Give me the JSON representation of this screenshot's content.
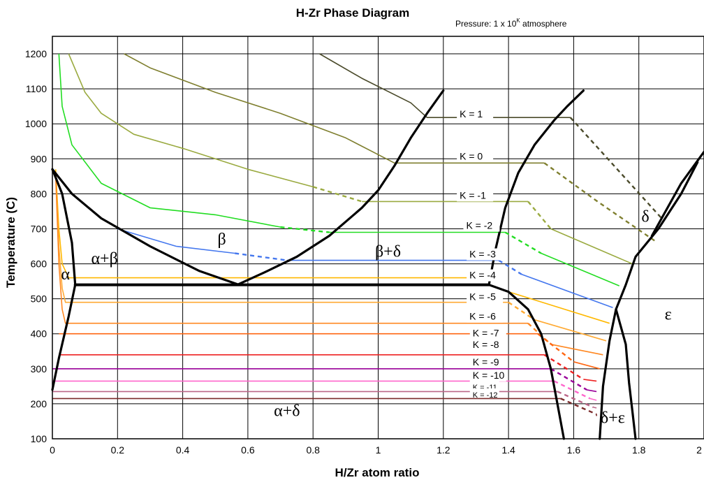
{
  "chart_data": {
    "type": "line",
    "title": "H-Zr Phase Diagram",
    "subtitle": {
      "prefix": "Pressure: 1 x 10",
      "superscript": "K",
      "suffix": " atmosphere"
    },
    "xlabel": "H/Zr atom ratio",
    "ylabel": "Temperature (C)",
    "xlim": [
      0,
      2
    ],
    "ylim": [
      100,
      1250
    ],
    "grid": true,
    "x_ticks": [
      {
        "value": 0,
        "label": "0"
      },
      {
        "value": 0.2,
        "label": "0.2"
      },
      {
        "value": 0.4,
        "label": "0.4"
      },
      {
        "value": 0.6,
        "label": "0.6"
      },
      {
        "value": 0.8,
        "label": "0.8"
      },
      {
        "value": 1,
        "label": "1"
      },
      {
        "value": 1.2,
        "label": "1.2"
      },
      {
        "value": 1.4,
        "label": "1.4"
      },
      {
        "value": 1.6,
        "label": "1.6"
      },
      {
        "value": 1.8,
        "label": "1.8"
      },
      {
        "value": 2,
        "label": "2"
      }
    ],
    "y_ticks": [
      {
        "value": 100,
        "label": "100"
      },
      {
        "value": 200,
        "label": "200"
      },
      {
        "value": 300,
        "label": "300"
      },
      {
        "value": 400,
        "label": "400"
      },
      {
        "value": 500,
        "label": "500"
      },
      {
        "value": 600,
        "label": "600"
      },
      {
        "value": 700,
        "label": "700"
      },
      {
        "value": 800,
        "label": "800"
      },
      {
        "value": 900,
        "label": "900"
      },
      {
        "value": 1000,
        "label": "1000"
      },
      {
        "value": 1100,
        "label": "1100"
      },
      {
        "value": 1200,
        "label": "1200"
      }
    ],
    "phase_boundaries": [
      {
        "name": "alpha-upper",
        "color": "#000000",
        "width": 3.2,
        "points": [
          [
            0,
            870
          ],
          [
            0.03,
            800
          ],
          [
            0.06,
            660
          ],
          [
            0.07,
            540
          ]
        ]
      },
      {
        "name": "alpha-lower",
        "color": "#000000",
        "width": 3.2,
        "points": [
          [
            0.07,
            540
          ],
          [
            0.05,
            450
          ],
          [
            0.02,
            330
          ],
          [
            0,
            240
          ]
        ]
      },
      {
        "name": "beta-lower-left",
        "color": "#000000",
        "width": 3.2,
        "points": [
          [
            0,
            870
          ],
          [
            0.06,
            800
          ],
          [
            0.15,
            730
          ],
          [
            0.3,
            650
          ],
          [
            0.45,
            580
          ],
          [
            0.57,
            541
          ]
        ]
      },
      {
        "name": "beta-right",
        "color": "#000000",
        "width": 3.2,
        "points": [
          [
            0.57,
            541
          ],
          [
            0.65,
            575
          ],
          [
            0.75,
            620
          ],
          [
            0.85,
            680
          ],
          [
            0.95,
            760
          ],
          [
            1.0,
            810
          ],
          [
            1.05,
            880
          ],
          [
            1.1,
            960
          ],
          [
            1.15,
            1030
          ],
          [
            1.2,
            1095
          ]
        ]
      },
      {
        "name": "eutectoid",
        "color": "#000000",
        "width": 4,
        "points": [
          [
            0.07,
            540
          ],
          [
            1.34,
            540
          ]
        ]
      },
      {
        "name": "delta-left",
        "color": "#000000",
        "width": 3.2,
        "points": [
          [
            1.34,
            540
          ],
          [
            1.36,
            640
          ],
          [
            1.39,
            760
          ],
          [
            1.43,
            860
          ],
          [
            1.48,
            940
          ],
          [
            1.54,
            1010
          ],
          [
            1.58,
            1050
          ],
          [
            1.63,
            1095
          ]
        ]
      },
      {
        "name": "delta-right",
        "color": "#000000",
        "width": 3.2,
        "points": [
          [
            1.98,
            890
          ],
          [
            1.93,
            800
          ],
          [
            1.86,
            700
          ],
          [
            1.79,
            620
          ],
          [
            1.76,
            540
          ],
          [
            1.73,
            470
          ],
          [
            1.71,
            380
          ],
          [
            1.69,
            250
          ],
          [
            1.68,
            100
          ]
        ]
      },
      {
        "name": "delta-eps-right",
        "color": "#000000",
        "width": 3.2,
        "points": [
          [
            2.0,
            920
          ],
          [
            1.93,
            830
          ],
          [
            1.84,
            680
          ]
        ]
      },
      {
        "name": "delta-low-left",
        "color": "#000000",
        "width": 3.2,
        "points": [
          [
            1.34,
            540
          ],
          [
            1.4,
            520
          ],
          [
            1.46,
            470
          ],
          [
            1.5,
            400
          ],
          [
            1.53,
            300
          ],
          [
            1.55,
            200
          ],
          [
            1.57,
            100
          ]
        ]
      },
      {
        "name": "eps-lower-left",
        "color": "#000000",
        "width": 3.2,
        "points": [
          [
            1.73,
            470
          ],
          [
            1.76,
            370
          ],
          [
            1.77,
            260
          ],
          [
            1.78,
            180
          ],
          [
            1.79,
            100
          ]
        ]
      }
    ],
    "isobars": [
      {
        "label": "K = 1",
        "color": "#4a4a2a",
        "label_x": 1.25,
        "label_y": 1018,
        "points": [
          [
            0.82,
            1200
          ],
          [
            0.95,
            1130
          ],
          [
            1.1,
            1060
          ],
          [
            1.15,
            1018
          ],
          [
            1.59,
            1018
          ]
        ],
        "dashed": [
          [
            1.59,
            1018
          ],
          [
            1.87,
            730
          ]
        ]
      },
      {
        "label": "K = 0",
        "color": "#7f7f2f",
        "label_x": 1.25,
        "label_y": 898,
        "points": [
          [
            0.22,
            1200
          ],
          [
            0.3,
            1160
          ],
          [
            0.5,
            1090
          ],
          [
            0.7,
            1030
          ],
          [
            0.9,
            960
          ],
          [
            1.05,
            888
          ],
          [
            1.51,
            888
          ]
        ],
        "dashed": [
          [
            1.51,
            888
          ],
          [
            1.67,
            780
          ],
          [
            1.85,
            665
          ]
        ]
      },
      {
        "label": "K = -1",
        "color": "#9aaa40",
        "label_x": 1.25,
        "label_y": 786,
        "points": [
          [
            0.05,
            1200
          ],
          [
            0.1,
            1090
          ],
          [
            0.15,
            1030
          ],
          [
            0.25,
            970
          ],
          [
            0.4,
            930
          ],
          [
            0.6,
            870
          ],
          [
            0.8,
            820
          ]
        ],
        "dashed": [
          [
            0.8,
            820
          ],
          [
            0.95,
            778
          ]
        ],
        "tail": [
          [
            0.95,
            778
          ],
          [
            1.46,
            778
          ]
        ],
        "tail_dashed": [
          [
            1.46,
            778
          ],
          [
            1.53,
            700
          ]
        ],
        "tail2": [
          [
            1.53,
            700
          ],
          [
            1.78,
            600
          ]
        ]
      },
      {
        "label": "K = -2",
        "color": "#22dd22",
        "label_x": 1.27,
        "label_y": 700,
        "points": [
          [
            0.02,
            1200
          ],
          [
            0.03,
            1050
          ],
          [
            0.06,
            940
          ],
          [
            0.15,
            830
          ],
          [
            0.3,
            760
          ],
          [
            0.5,
            740
          ],
          [
            0.7,
            705
          ]
        ],
        "dashed": [
          [
            0.7,
            705
          ],
          [
            0.85,
            690
          ]
        ],
        "tail": [
          [
            0.85,
            690
          ],
          [
            1.39,
            690
          ]
        ],
        "tail_dashed": [
          [
            1.39,
            690
          ],
          [
            1.5,
            630
          ]
        ],
        "tail2": [
          [
            1.5,
            630
          ],
          [
            1.74,
            537
          ]
        ]
      },
      {
        "label": "K = -3",
        "color": "#4477ee",
        "label_x": 1.28,
        "label_y": 618,
        "points": [
          [
            0.2,
            700
          ],
          [
            0.38,
            650
          ],
          [
            0.56,
            630
          ]
        ],
        "dashed": [
          [
            0.56,
            630
          ],
          [
            0.72,
            610
          ]
        ],
        "tail": [
          [
            0.72,
            610
          ],
          [
            1.37,
            610
          ]
        ],
        "tail_dashed": [
          [
            1.37,
            610
          ],
          [
            1.44,
            570
          ]
        ],
        "tail2": [
          [
            1.44,
            570
          ],
          [
            1.72,
            475
          ]
        ]
      },
      {
        "label": "K = -4",
        "color": "#ffb800",
        "label_x": 1.28,
        "label_y": 558,
        "points": [
          [
            0.01,
            870
          ],
          [
            0.02,
            700
          ],
          [
            0.03,
            600
          ],
          [
            0.05,
            560
          ],
          [
            1.34,
            560
          ]
        ],
        "tail": [
          [
            1.4,
            520
          ],
          [
            1.71,
            430
          ]
        ]
      },
      {
        "label": "K = -5",
        "color": "#ffaa33",
        "label_x": 1.28,
        "label_y": 496,
        "points": [
          [
            0.01,
            860
          ],
          [
            0.02,
            650
          ],
          [
            0.03,
            530
          ],
          [
            0.04,
            490
          ],
          [
            1.4,
            490
          ]
        ],
        "tail_dashed": [
          [
            1.4,
            490
          ],
          [
            1.48,
            440
          ]
        ],
        "tail2": [
          [
            1.48,
            440
          ],
          [
            1.7,
            380
          ]
        ]
      },
      {
        "label": "K = -6",
        "color": "#ff8822",
        "label_x": 1.28,
        "label_y": 440,
        "points": [
          [
            0.01,
            850
          ],
          [
            0.02,
            600
          ],
          [
            0.03,
            470
          ],
          [
            0.04,
            430
          ],
          [
            1.46,
            430
          ]
        ],
        "tail_dashed": [
          [
            1.46,
            430
          ],
          [
            1.53,
            370
          ]
        ],
        "tail2": [
          [
            1.53,
            370
          ],
          [
            1.69,
            340
          ]
        ]
      },
      {
        "label": "K = -7",
        "color": "#ff6611",
        "label_x": 1.29,
        "label_y": 392,
        "points": [
          [
            0.02,
            400
          ],
          [
            1.49,
            400
          ]
        ],
        "tail_dashed": [
          [
            1.49,
            400
          ],
          [
            1.6,
            320
          ]
        ],
        "tail2": [
          [
            1.6,
            320
          ],
          [
            1.68,
            300
          ]
        ]
      },
      {
        "label": "K = -8",
        "color": "#ee2222",
        "label_x": 1.29,
        "label_y": 360,
        "points": [
          [
            0.02,
            340
          ],
          [
            1.51,
            340
          ]
        ],
        "tail_dashed": [
          [
            1.51,
            340
          ],
          [
            1.63,
            270
          ]
        ],
        "tail2": [
          [
            1.63,
            270
          ],
          [
            1.67,
            265
          ]
        ]
      },
      {
        "label": "K = -9",
        "color": "#990099",
        "label_x": 1.29,
        "label_y": 310,
        "points": [
          [
            0.0,
            300
          ],
          [
            1.53,
            300
          ]
        ],
        "tail_dashed": [
          [
            1.53,
            300
          ],
          [
            1.64,
            240
          ]
        ],
        "tail2": [
          [
            1.64,
            240
          ],
          [
            1.67,
            235
          ]
        ]
      },
      {
        "label": "K = -10",
        "color": "#ff66cc",
        "label_x": 1.29,
        "label_y": 272,
        "points": [
          [
            0.0,
            265
          ],
          [
            1.54,
            265
          ]
        ],
        "tail_dashed": [
          [
            1.54,
            265
          ],
          [
            1.65,
            215
          ]
        ],
        "tail2": [
          [
            1.65,
            215
          ],
          [
            1.67,
            210
          ]
        ]
      },
      {
        "label": "K = -11",
        "color": "#bb6688",
        "label_x": 1.29,
        "label_y": 240,
        "small": true,
        "points": [
          [
            0.0,
            235
          ],
          [
            1.55,
            235
          ]
        ],
        "tail_dashed": [
          [
            1.55,
            235
          ],
          [
            1.66,
            190
          ]
        ],
        "tail2": [
          [
            1.66,
            190
          ],
          [
            1.67,
            188
          ]
        ]
      },
      {
        "label": "K = -12",
        "color": "#7a2a2a",
        "label_x": 1.29,
        "label_y": 218,
        "small": true,
        "points": [
          [
            0.0,
            215
          ],
          [
            1.56,
            215
          ]
        ],
        "tail_dashed": [
          [
            1.56,
            215
          ],
          [
            1.67,
            170
          ]
        ],
        "tail2": [
          [
            1.67,
            170
          ],
          [
            1.67,
            165
          ]
        ]
      }
    ],
    "region_labels": [
      {
        "text": "α+β",
        "x": 0.16,
        "y": 600
      },
      {
        "text": "α",
        "x": 0.04,
        "y": 555
      },
      {
        "text": "β",
        "x": 0.52,
        "y": 655
      },
      {
        "text": "β+δ",
        "x": 1.03,
        "y": 620
      },
      {
        "text": "δ",
        "x": 1.82,
        "y": 720
      },
      {
        "text": "ε",
        "x": 1.89,
        "y": 440
      },
      {
        "text": "α+δ",
        "x": 0.72,
        "y": 165
      },
      {
        "text": "δ+ε",
        "x": 1.72,
        "y": 145
      }
    ]
  }
}
